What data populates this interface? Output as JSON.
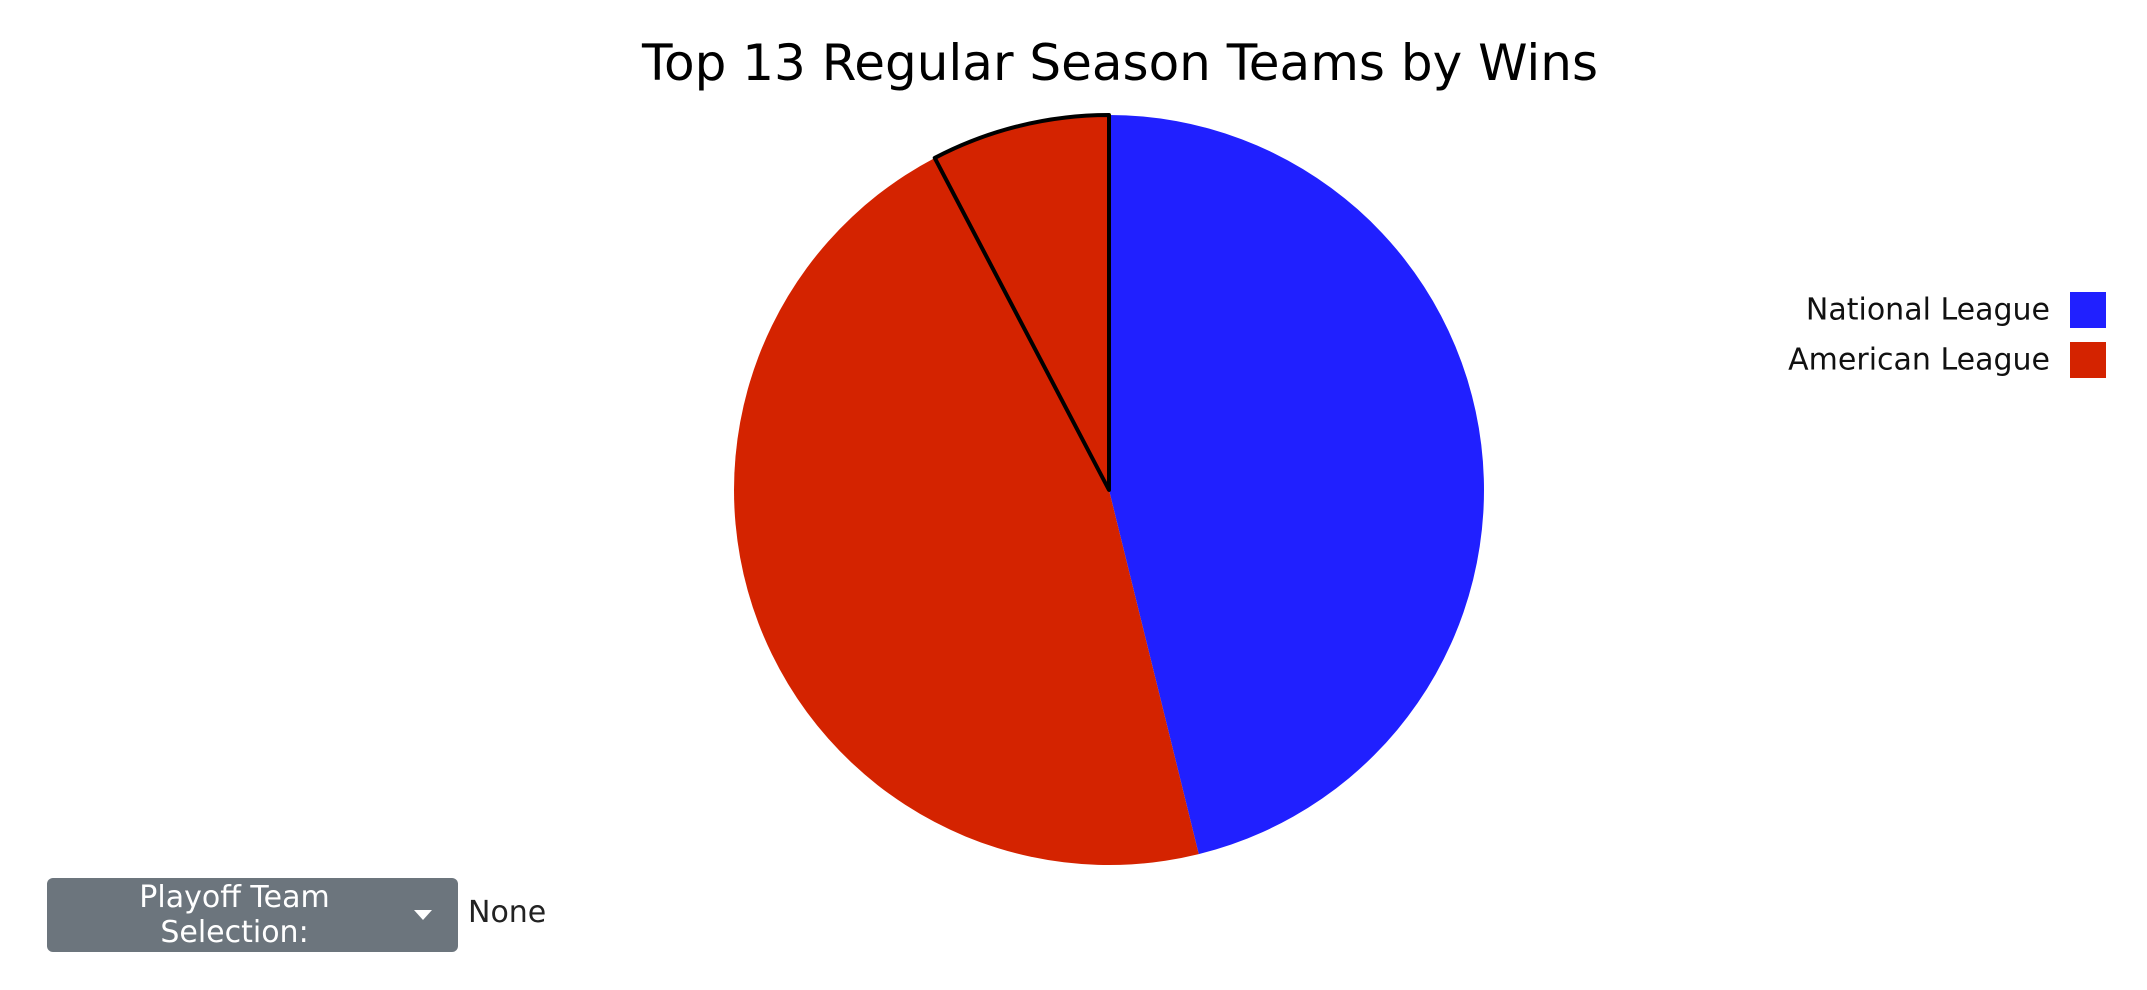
{
  "chart_data": {
    "type": "pie",
    "title": "Top 13 Regular Season Teams by Wins",
    "slices": [
      {
        "label": "National League",
        "value": 6,
        "color": "#2020ff",
        "highlighted": false
      },
      {
        "label": "American League",
        "value": 6,
        "color": "#d42300",
        "highlighted": false
      },
      {
        "label": "American League",
        "value": 1,
        "color": "#d42300",
        "highlighted": true
      }
    ],
    "start": "top",
    "direction": "clockwise",
    "legend": {
      "placement": "right",
      "entries": [
        {
          "label": "National League",
          "color": "#2020ff"
        },
        {
          "label": "American League",
          "color": "#d42300"
        }
      ]
    }
  },
  "controls": {
    "dropdown_label": "Playoff Team Selection:",
    "dropdown_icon": "caret-down-icon",
    "selected_value": "None"
  }
}
